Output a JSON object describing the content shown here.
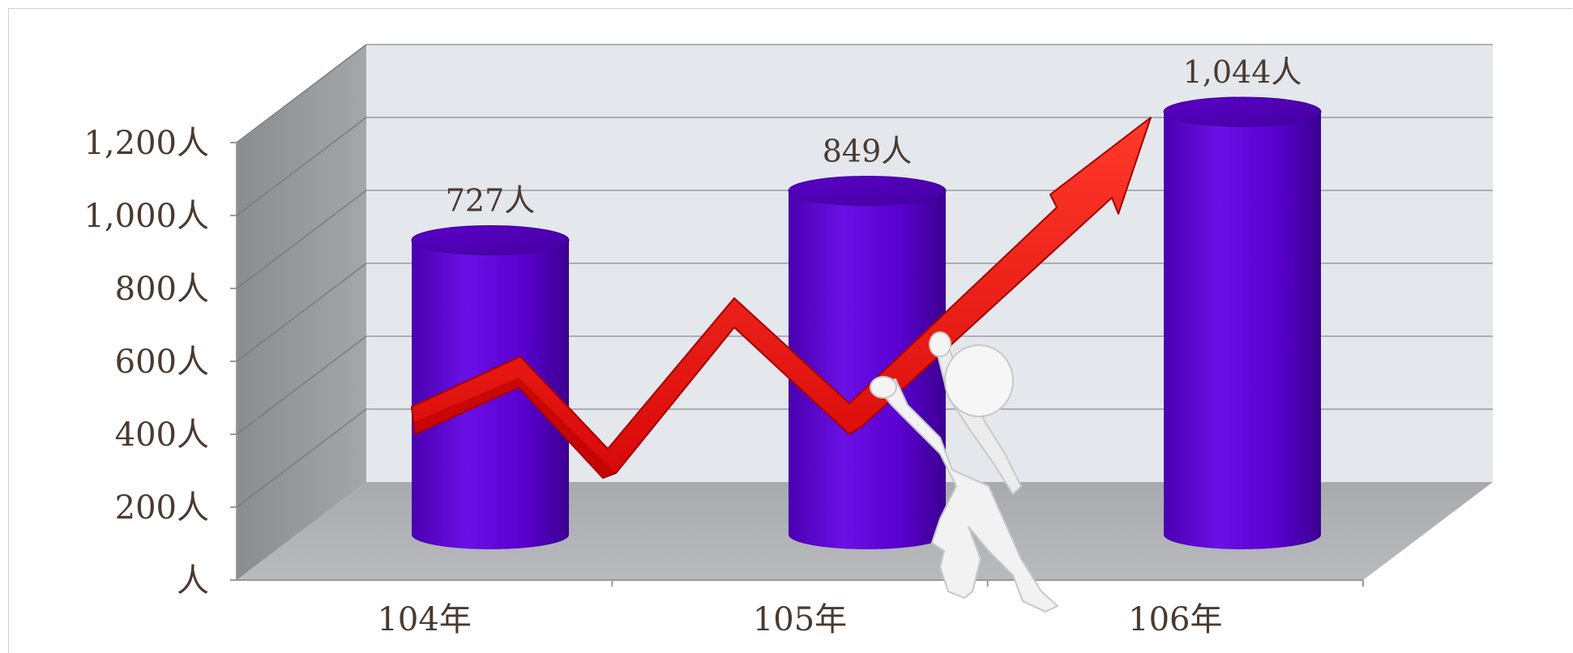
{
  "chart_data": {
    "type": "bar",
    "categories": [
      "104年",
      "105年",
      "106年"
    ],
    "values": [
      727,
      849,
      1044
    ],
    "data_labels": [
      "727人",
      "849人",
      "1,044人"
    ],
    "y_ticks": [
      {
        "value": 0,
        "label": "人"
      },
      {
        "value": 200,
        "label": "200人"
      },
      {
        "value": 400,
        "label": "400人"
      },
      {
        "value": 600,
        "label": "600人"
      },
      {
        "value": 800,
        "label": "800人"
      },
      {
        "value": 1000,
        "label": "1,000人"
      },
      {
        "value": 1200,
        "label": "1,200人"
      }
    ],
    "ylim": [
      0,
      1400
    ],
    "grid": true,
    "legend": "none",
    "style": "3d-cylinder",
    "bar_color": "#5b00d6",
    "arrow_color": "#e81010"
  }
}
